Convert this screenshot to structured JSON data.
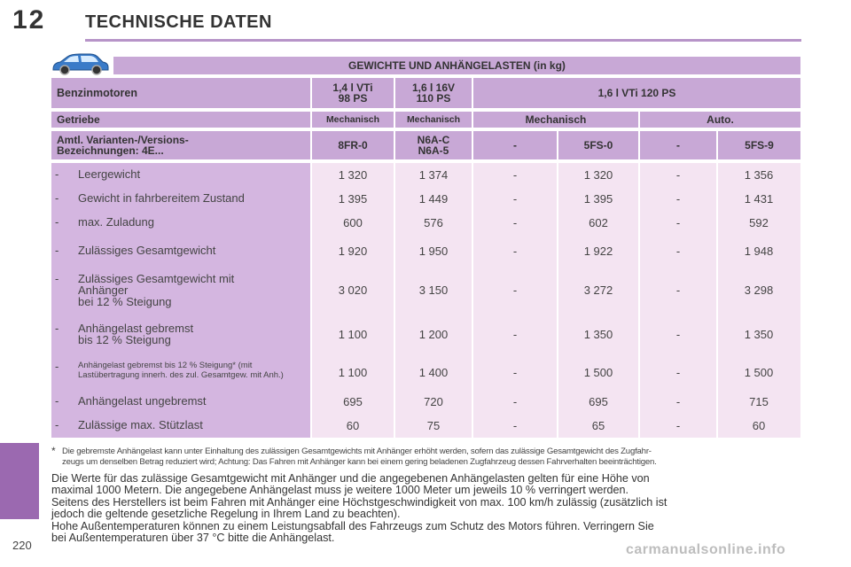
{
  "header": {
    "chapter_number": "12",
    "chapter_title": "TECHNISCHE DATEN"
  },
  "page_number": "220",
  "table": {
    "title": "GEWICHTE UND ANHÄNGELASTEN (in kg)",
    "engine_label": "Benzinmotoren",
    "engines": [
      "1,4 l VTi\n98 PS",
      "1,6 l 16V\n110 PS",
      "1,6 l VTi 120 PS"
    ],
    "gearbox_label": "Getriebe",
    "gearboxes": [
      "Mechanisch",
      "Mechanisch",
      "Mechanisch",
      "Auto."
    ],
    "variants_label": "Amtl. Varianten-/Versions-\nBezeichnungen: 4E...",
    "variants": [
      "8FR-0",
      "N6A-C\nN6A-5",
      "-",
      "5FS-0",
      "-",
      "5FS-9"
    ],
    "rows": [
      {
        "label": "Leergewicht",
        "values": [
          "1 320",
          "1 374",
          "-",
          "1 320",
          "-",
          "1 356"
        ]
      },
      {
        "label": "Gewicht in fahrbereitem Zustand",
        "values": [
          "1 395",
          "1 449",
          "-",
          "1 395",
          "-",
          "1 431"
        ]
      },
      {
        "label": "max. Zuladung",
        "values": [
          "600",
          "576",
          "-",
          "602",
          "-",
          "592"
        ]
      },
      {
        "label": "Zulässiges Gesamtgewicht",
        "values": [
          "1 920",
          "1 950",
          "-",
          "1 922",
          "-",
          "1 948"
        ]
      },
      {
        "label": "Zulässiges Gesamtgewicht mit\nAnhänger\nbei 12 % Steigung",
        "values": [
          "3 020",
          "3 150",
          "-",
          "3 272",
          "-",
          "3 298"
        ]
      },
      {
        "label": "Anhängelast gebremst\nbis 12 % Steigung",
        "values": [
          "1 100",
          "1 200",
          "-",
          "1 350",
          "-",
          "1 350"
        ]
      },
      {
        "label": "Anhängelast gebremst bis 12 % Steigung* (mit\nLastübertragung innerh. des zul. Gesamtgew. mit Anh.)",
        "values": [
          "1 100",
          "1 400",
          "-",
          "1 500",
          "-",
          "1 500"
        ]
      },
      {
        "label": "Anhängelast ungebremst",
        "values": [
          "695",
          "720",
          "-",
          "695",
          "-",
          "715"
        ]
      },
      {
        "label": "Zulässige max. Stützlast",
        "values": [
          "60",
          "75",
          "-",
          "65",
          "-",
          "60"
        ]
      }
    ]
  },
  "footnote": {
    "marker": "*",
    "line1": "Die gebremste Anhängelast kann unter Einhaltung des zulässigen Gesamtgewichts mit Anhänger erhöht werden, sofern das zulässige Gesamtgewicht des Zugfahr-",
    "line2": "zeugs um denselben Betrag reduziert wird; Achtung: Das Fahren mit Anhänger kann bei einem gering beladenen Zugfahrzeug dessen Fahrverhalten beeinträchtigen."
  },
  "paragraphs": [
    [
      "Die Werte für das zulässige Gesamtgewicht mit Anhänger und die angegebenen Anhängelasten gelten für eine Höhe von",
      "maximal 1000 Metern. Die angegebene Anhängelast muss je weitere 1000 Meter um jeweils 10 % verringert werden."
    ],
    [
      "Seitens des Herstellers ist beim Fahren mit Anhänger eine Höchstgeschwindigkeit von max. 100 km/h zulässig (zusätzlich ist",
      "jedoch die geltende gesetzliche Regelung in Ihrem Land zu beachten)."
    ],
    [
      "Hohe Außentemperaturen können zu einem Leistungsabfall des Fahrzeugs zum Schutz des Motors führen. Verringern Sie",
      "bei Außentemperaturen über 37 °C bitte die Anhängelast."
    ]
  ],
  "watermark": "carmanualsonline.info",
  "icons": {
    "car": "car-icon"
  },
  "colors": {
    "header_fill": "#c8a8d6",
    "label_fill": "#d4b6e0",
    "data_fill": "#f4e4f2",
    "accent": "#9b69b0"
  }
}
